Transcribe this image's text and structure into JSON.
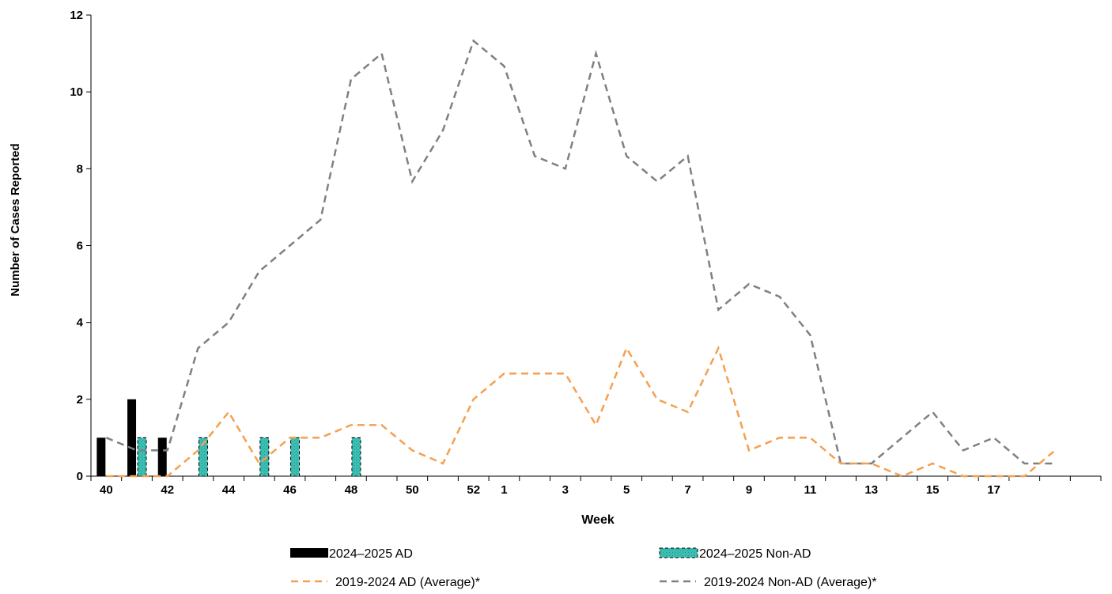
{
  "chart_data": {
    "type": "bar",
    "title": "",
    "xlabel": "Week",
    "ylabel": "Number of Cases Reported",
    "ylim": [
      0,
      12
    ],
    "yticks": [
      0,
      2,
      4,
      6,
      8,
      10,
      12
    ],
    "grid": false,
    "legend_position": "bottom",
    "categories": [
      "40",
      "41",
      "42",
      "43",
      "44",
      "45",
      "46",
      "47",
      "48",
      "49",
      "50",
      "51",
      "52",
      "1",
      "2",
      "3",
      "4",
      "5",
      "6",
      "7",
      "8",
      "9",
      "10",
      "11",
      "12",
      "13",
      "14",
      "15",
      "16",
      "17",
      "18",
      "19",
      "20"
    ],
    "tick_labels": [
      "40",
      "42",
      "44",
      "46",
      "48",
      "50",
      "52",
      "1",
      "3",
      "5",
      "7",
      "9",
      "11",
      "13",
      "15",
      "17"
    ],
    "series": [
      {
        "name": "2024–2025 AD",
        "kind": "bar",
        "color": "#000000",
        "values": [
          1,
          2,
          1,
          0,
          0,
          0,
          0,
          0,
          0,
          0,
          0,
          0,
          0,
          0,
          0,
          0,
          0,
          0,
          0,
          0,
          0,
          0,
          0,
          0,
          0,
          0,
          0,
          0,
          0,
          0,
          0,
          0,
          0
        ]
      },
      {
        "name": "2024–2025 Non-AD",
        "kind": "bar",
        "color": "#3cc0b5",
        "values": [
          0,
          1,
          0,
          1,
          0,
          1,
          1,
          0,
          1,
          0,
          0,
          0,
          0,
          0,
          0,
          0,
          0,
          0,
          0,
          0,
          0,
          0,
          0,
          0,
          0,
          0,
          0,
          0,
          0,
          0,
          0,
          0,
          0
        ]
      },
      {
        "name": "2019-2024 AD (Average)*",
        "kind": "line",
        "color": "#f4a050",
        "values": [
          0,
          0,
          0,
          0.67,
          1.67,
          0.33,
          1,
          1,
          1.33,
          1.33,
          0.67,
          0.33,
          2,
          2.67,
          2.67,
          2.67,
          1.33,
          3.33,
          2,
          1.67,
          3.33,
          0.67,
          1,
          1,
          0.33,
          0.33,
          0,
          0.33,
          0,
          0,
          0,
          0.67,
          null
        ]
      },
      {
        "name": "2019-2024 Non-AD (Average)*",
        "kind": "line",
        "color": "#808080",
        "values": [
          1,
          0.67,
          0.67,
          3.33,
          4,
          5.33,
          6,
          6.67,
          10.33,
          11,
          7.67,
          9,
          11.33,
          10.67,
          8.33,
          8,
          11,
          8.33,
          7.67,
          8.33,
          4.33,
          5,
          4.67,
          3.67,
          0.33,
          0.33,
          1,
          1.67,
          0.67,
          1,
          0.33,
          0.33,
          null
        ]
      }
    ]
  }
}
